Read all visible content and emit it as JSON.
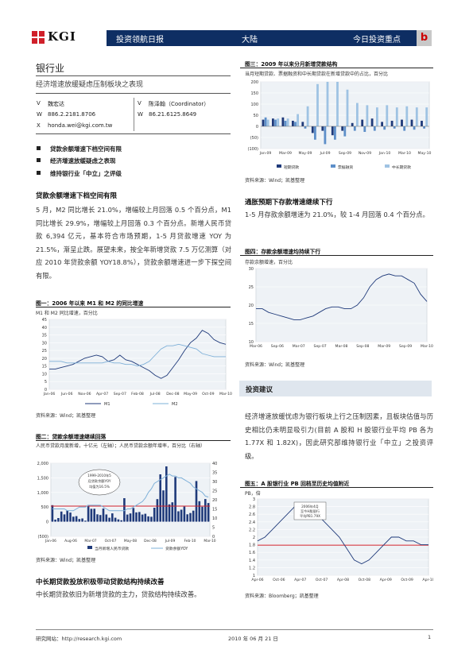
{
  "header": {
    "logo_text": "KGI",
    "product": "投资领航日报",
    "market": "大陆",
    "section": "今日投资重点",
    "section_mark": "b"
  },
  "section_title": "银行业",
  "subtitle": "经济增速放缓疑虑压制板块之表现",
  "analysts": [
    {
      "mark": "V",
      "name": "魏宏达",
      "phone_label": "W",
      "phone": "886.2.2181.8706",
      "email_label": "X",
      "email": "honda.wei@kgi.com.tw"
    },
    {
      "mark": "V",
      "name": "陈泽翰（Coordinator）",
      "phone_label": "W",
      "phone": "86.21.6125.8649"
    }
  ],
  "bullets": [
    "贷款余额增速下档空间有限",
    "经济增速放缓疑虑之表现",
    "维持银行业「中立」之评级"
  ],
  "left": {
    "h1": "贷款余额增速下档空间有限",
    "p1": "5 月，M2 同比增长 21.0%，增幅较上月回落 0.5 个百分点，M1 同比增长 29.9%，增幅较上月回落 0.3 个百分点。新增人民币贷款 6,394 亿元，基本符合市场预期，1-5 月贷款增速 YOY 为 21.5%，渐呈止跌。展望未来，按全年新增贷款 7.5 万亿测算（对应 2010 年贷款余额 YOY18.8%），贷款余额增速进一步下探空间有限。",
    "h2": "中长期贷款投放积极带动贷款结构持续改善",
    "p2": "中长期贷款依旧为新增贷款的主力，贷款结构持续改善。"
  },
  "right": {
    "h1": "通胀预期下存款增速继续下行",
    "p1": "1-5 月存款余额增速为 21.0%，较 1-4 月回落 0.4 个百分点。",
    "invest_title": "投资建议",
    "p2": "经济增速放缓忧虑为银行板块上行之压制因素，且板块估值与历史相比仍未明显吸引力(目前 A 股和 H 股银行业平均 PB 各为 1.77X 和 1.82X)，因此研究部维持银行业「中立」之投资评级。"
  },
  "figures": {
    "fig1": {
      "caption": "图一：2006 年以来 M1 和 M2 的同比增速",
      "sub": "M1 和 M2 同比增速，百分比",
      "source": "资料来源：Wind；凯基整理",
      "chart_data": {
        "type": "line",
        "x_ticks": [
          "Jan-06",
          "Jun-06",
          "Nov-06",
          "Apr-07",
          "Sep-07",
          "Feb-08",
          "Jul-08",
          "Dec-08",
          "May-09",
          "Oct-09",
          "Mar-10"
        ],
        "ylim": [
          0,
          45
        ],
        "y_ticks": [
          0,
          5,
          10,
          15,
          20,
          25,
          30,
          35,
          40,
          45
        ],
        "series": [
          {
            "name": "M1",
            "color": "#1f3a7a",
            "values": [
              13,
              13,
              14,
              15,
              16,
              18,
              20,
              21,
              22,
              21,
              18,
              19,
              22,
              19,
              18,
              16,
              14,
              12,
              9,
              7,
              9,
              14,
              19,
              25,
              30,
              33,
              38,
              36,
              32,
              30,
              29
            ]
          },
          {
            "name": "M2",
            "color": "#7eb0d8",
            "values": [
              18,
              18,
              18,
              17,
              17,
              17,
              17,
              17,
              17,
              17,
              18,
              17,
              17,
              16,
              16,
              15,
              16,
              18,
              22,
              26,
              28,
              28,
              29,
              28,
              27,
              26,
              23,
              22,
              21,
              21,
              21
            ]
          }
        ]
      }
    },
    "fig2": {
      "caption": "图二：贷款余额增速继续回落",
      "sub": "人民币贷款月度新增，十亿元（左轴）；人民币贷款余额年增率，百分比（右轴）",
      "source": "资料来源：Wind；凯基整理",
      "annotation": "1999-2010年5月贷款余额YOY均值为16.5%",
      "chart_data": {
        "type": "bar",
        "x_ticks": [
          "Jan-06",
          "Aug-06",
          "Mar-07",
          "Oct-07",
          "May-08",
          "Dec-08",
          "Jul-09",
          "Feb-10",
          "Mar-10"
        ],
        "ylim": [
          -500,
          2000
        ],
        "y_ticks": [
          -500,
          0,
          500,
          1000,
          1500,
          2000
        ],
        "y2lim": [
          0,
          40
        ],
        "y2_ticks": [
          0,
          5,
          10,
          15,
          20,
          25,
          30,
          35,
          40
        ],
        "series": [
          {
            "name": "当月新增人民币贷款",
            "color": "#1f3a7a",
            "values": [
              565,
              70,
              125,
              347,
              249,
              380,
              313,
              170,
              191,
              92,
              112,
              36,
              567,
              440,
              442,
              254,
              227,
              451,
              248,
              136,
              284,
              136,
              80,
              48,
              804,
              245,
              283,
              469,
              319,
              332,
              245,
              272,
              181,
              169,
              477,
              772,
              1620,
              1070,
              1890,
              592,
              664,
              1530,
              356,
              410,
              517,
              253,
              295,
              379,
              1390,
              700,
              510,
              774,
              639
            ]
          },
          {
            "name": "贷款余额YOY",
            "color": "#7eb0d8",
            "values": [
              15,
              15,
              15,
              15,
              15,
              14,
              14,
              14,
              15,
              16,
              16,
              16,
              17,
              17,
              17,
              17,
              17,
              16,
              15,
              14,
              14,
              14,
              14,
              14,
              14,
              15,
              15,
              16,
              17,
              18,
              19,
              21,
              24,
              26,
              29,
              30,
              31,
              32,
              33,
              34,
              33,
              33,
              32,
              32,
              31,
              30,
              29,
              27,
              26,
              25,
              24,
              22,
              21.5
            ]
          }
        ],
        "reference_line": 16.5
      }
    },
    "fig3": {
      "caption": "图三：2009 年以来分月新增贷款结构",
      "sub": "当月短期贷款、票据融资和中长期贷款在新增贷款中的占比，百分比",
      "source": "资料来源：Wind；凯基整理",
      "chart_data": {
        "type": "bar",
        "x_ticks": [
          "Jan-09",
          "Mar-09",
          "May-09",
          "Jul-09",
          "Sep-09",
          "Nov-09",
          "Jan-10",
          "Mar-10",
          "May-10"
        ],
        "ylim": [
          -100,
          200
        ],
        "y_ticks": [
          200,
          150,
          100,
          50,
          0,
          -50,
          -100
        ],
        "y_tick_labels": [
          "200",
          "150",
          "100",
          "50",
          "0",
          "(50)",
          "(100)"
        ],
        "series": [
          {
            "name": "短期贷款",
            "color": "#1f3a7a",
            "values": [
              30,
              35,
              40,
              25,
              20,
              -30,
              -20,
              -40,
              -20,
              15,
              30,
              35,
              20,
              25,
              30,
              30,
              25
            ]
          },
          {
            "name": "票据融资",
            "color": "#5d8fc9",
            "values": [
              40,
              30,
              25,
              20,
              -10,
              -60,
              -80,
              -60,
              -45,
              -20,
              -25,
              -20,
              -15,
              -10,
              -20,
              -15,
              -10
            ]
          },
          {
            "name": "中长期贷款",
            "color": "#9fc3e3",
            "values": [
              30,
              35,
              35,
              55,
              90,
              190,
              200,
              200,
              165,
              105,
              95,
              85,
              95,
              85,
              90,
              85,
              85
            ]
          }
        ]
      }
    },
    "fig4": {
      "caption": "图四：存款余额增速均持续下行",
      "sub": "存款余额增速，百分比",
      "source": "资料来源：Wind；凯基整理",
      "chart_data": {
        "type": "line",
        "x_ticks": [
          "Mar-06",
          "Sep-06",
          "Mar-07",
          "Sep-07",
          "Mar-08",
          "Sep-08",
          "Mar-09",
          "Sep-09",
          "Mar-10"
        ],
        "ylim": [
          10,
          30
        ],
        "y_ticks": [
          10,
          15,
          20,
          25,
          30
        ],
        "series": [
          {
            "name": "存款余额增速",
            "color": "#1f3a7a",
            "values": [
              19,
              19,
              18,
              17.5,
              17,
              16.5,
              16,
              16,
              16.5,
              17,
              18,
              19,
              19.5,
              19.5,
              19,
              19,
              20,
              22,
              25,
              27,
              28,
              28.5,
              28,
              28,
              27,
              26,
              23,
              21
            ]
          }
        ]
      }
    },
    "fig5": {
      "caption": "图五：A 股银行业 PB 回档至历史均值附近",
      "sub": "PB，倍",
      "source": "资料来源：Bloomberg；凯基整理",
      "annotation": "2006年4月至今H股银行平均PB1.79X",
      "chart_data": {
        "type": "line",
        "x_ticks": [
          "Apr-06",
          "Oct-06",
          "Apr-07",
          "Oct-07",
          "Apr-08",
          "Oct-08",
          "Apr-09",
          "Oct-09",
          "Apr-10"
        ],
        "x_tick_labels": [
          "Apr-06",
          "Oct-06",
          "Apr-07",
          "Oct-07",
          "Apr-08",
          "Oct-08",
          "Apr-09",
          "Oct-09",
          "Apr-10"
        ],
        "ylim": [
          1.0,
          3.0
        ],
        "y_ticks": [
          1.0,
          1.2,
          1.4,
          1.6,
          1.8,
          2.0,
          2.2,
          2.4,
          2.6,
          2.8,
          3.0
        ],
        "series": [
          {
            "name": "H股银行平均PB",
            "color": "#1f3a7a",
            "values": [
              1.9,
              2.0,
              2.2,
              2.4,
              2.6,
              2.8,
              2.9,
              2.7,
              2.6,
              2.4,
              2.2,
              2.0,
              1.7,
              1.4,
              1.3,
              1.4,
              1.6,
              1.8,
              2.0,
              2.0,
              1.9,
              1.9,
              1.8,
              1.8
            ]
          }
        ],
        "reference_line": 1.79
      }
    }
  },
  "footer": {
    "left": "研究网站：http://research.kgi.com",
    "mid": "2010 年 06 月 21 日",
    "right": "1"
  }
}
